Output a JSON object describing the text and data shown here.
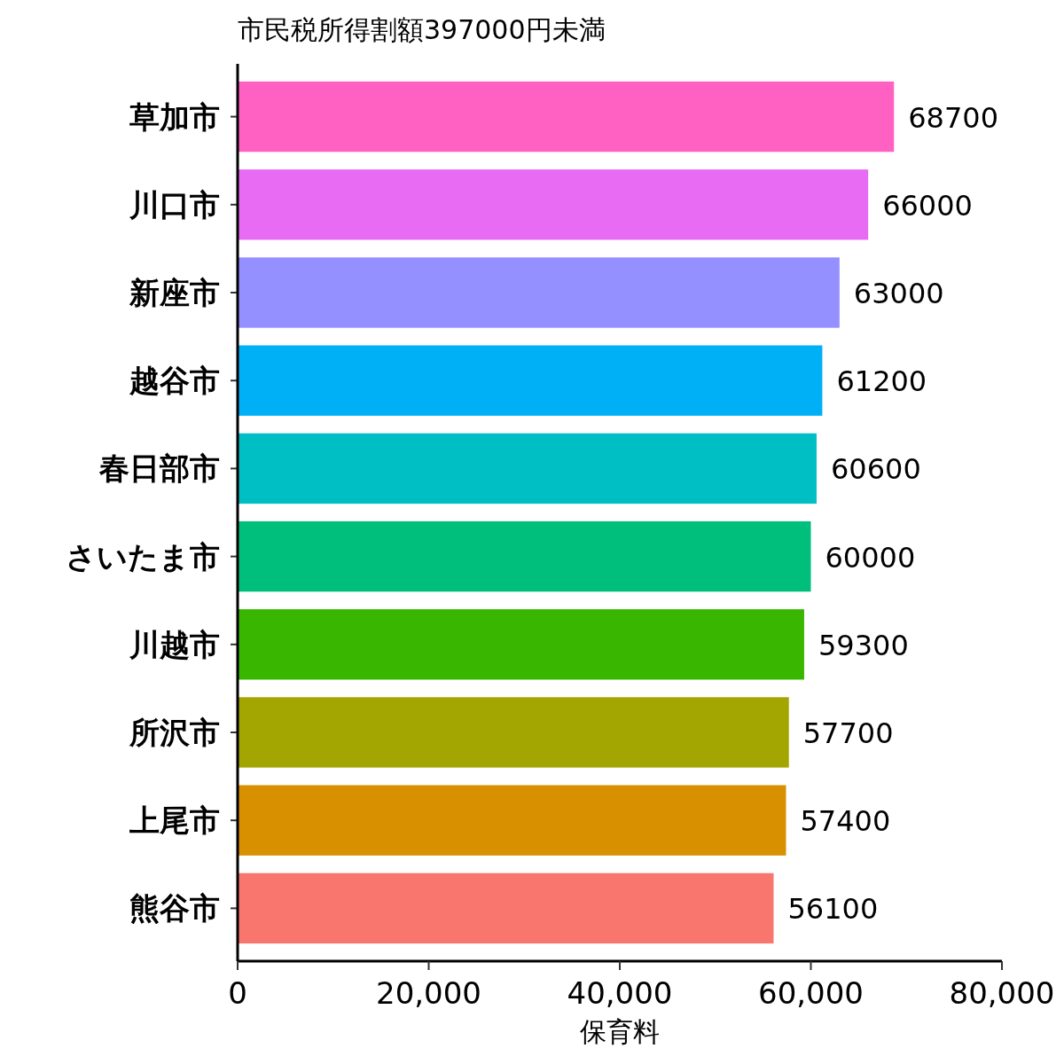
{
  "chart_data": {
    "type": "bar",
    "orientation": "horizontal",
    "title": "市民税所得割額397000円未満",
    "xlabel": "保育料",
    "categories": [
      "草加市",
      "川口市",
      "新座市",
      "越谷市",
      "春日部市",
      "さいたま市",
      "川越市",
      "所沢市",
      "上尾市",
      "熊谷市"
    ],
    "values": [
      68700,
      66000,
      63000,
      61200,
      60600,
      60000,
      59300,
      57700,
      57400,
      56100
    ],
    "colors": [
      "#ff61c3",
      "#e76bf3",
      "#9590ff",
      "#00b0f6",
      "#00bfc4",
      "#00bf7d",
      "#39b600",
      "#a3a500",
      "#d89000",
      "#f8766d"
    ],
    "xlim": [
      0,
      80000
    ],
    "xticks": [
      0,
      {
        "value": 20000,
        "label": "20,000"
      },
      {
        "value": 40000,
        "label": "40,000"
      },
      {
        "value": 60000,
        "label": "60,000"
      },
      {
        "value": 80000,
        "label": "80,000"
      }
    ],
    "data_labels": true
  }
}
